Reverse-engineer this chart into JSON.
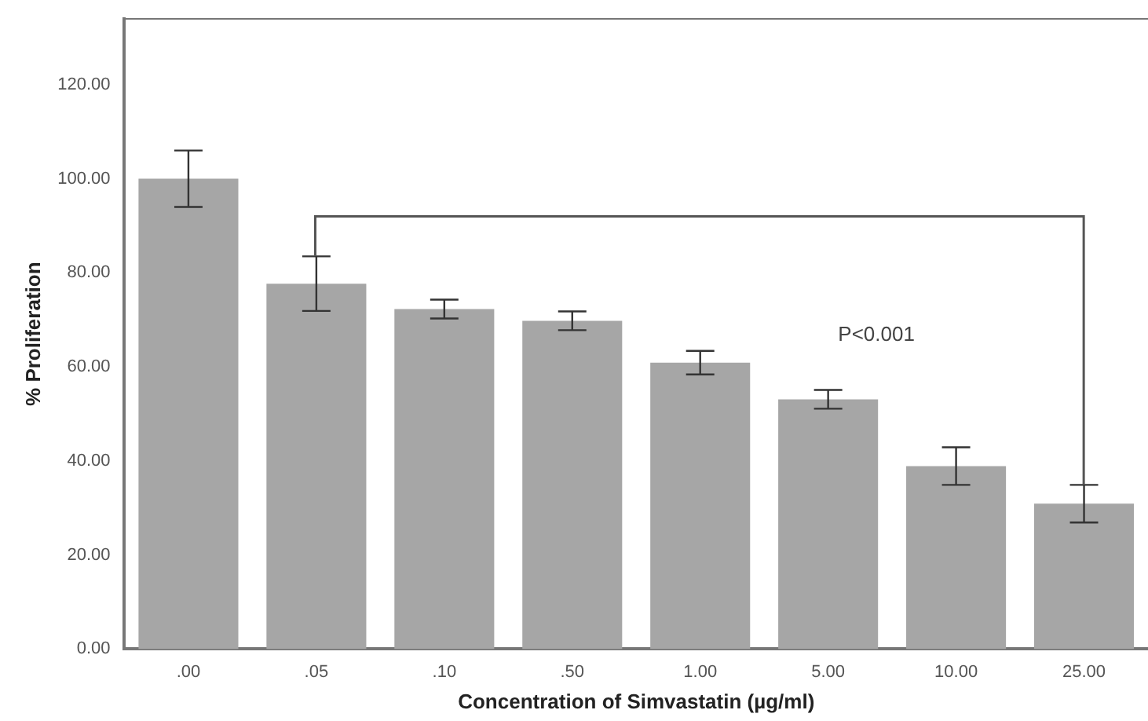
{
  "chart_data": {
    "type": "bar",
    "xlabel": "Concentration of Simvastatin (µg/ml)",
    "ylabel": "% Proliferation",
    "categories": [
      ".00",
      ".05",
      ".10",
      ".50",
      "1.00",
      "5.00",
      "10.00",
      "25.00"
    ],
    "values": [
      100,
      77.7,
      72.3,
      69.8,
      60.9,
      53.1,
      38.9,
      30.9
    ],
    "errors": [
      6,
      5.8,
      2,
      2,
      2.5,
      2,
      4,
      4
    ],
    "color": "#a6a6a6",
    "ylim": [
      0,
      134
    ],
    "yticks": [
      {
        "value": 0,
        "label": "0.00"
      },
      {
        "value": 20,
        "label": "20.00"
      },
      {
        "value": 40,
        "label": "40.00"
      },
      {
        "value": 60,
        "label": "60.00"
      },
      {
        "value": 80,
        "label": "80.00"
      },
      {
        "value": 100,
        "label": "100.00"
      },
      {
        "value": 120,
        "label": "120.00"
      }
    ],
    "annotations": [
      "P<0.001"
    ],
    "grid": false
  }
}
